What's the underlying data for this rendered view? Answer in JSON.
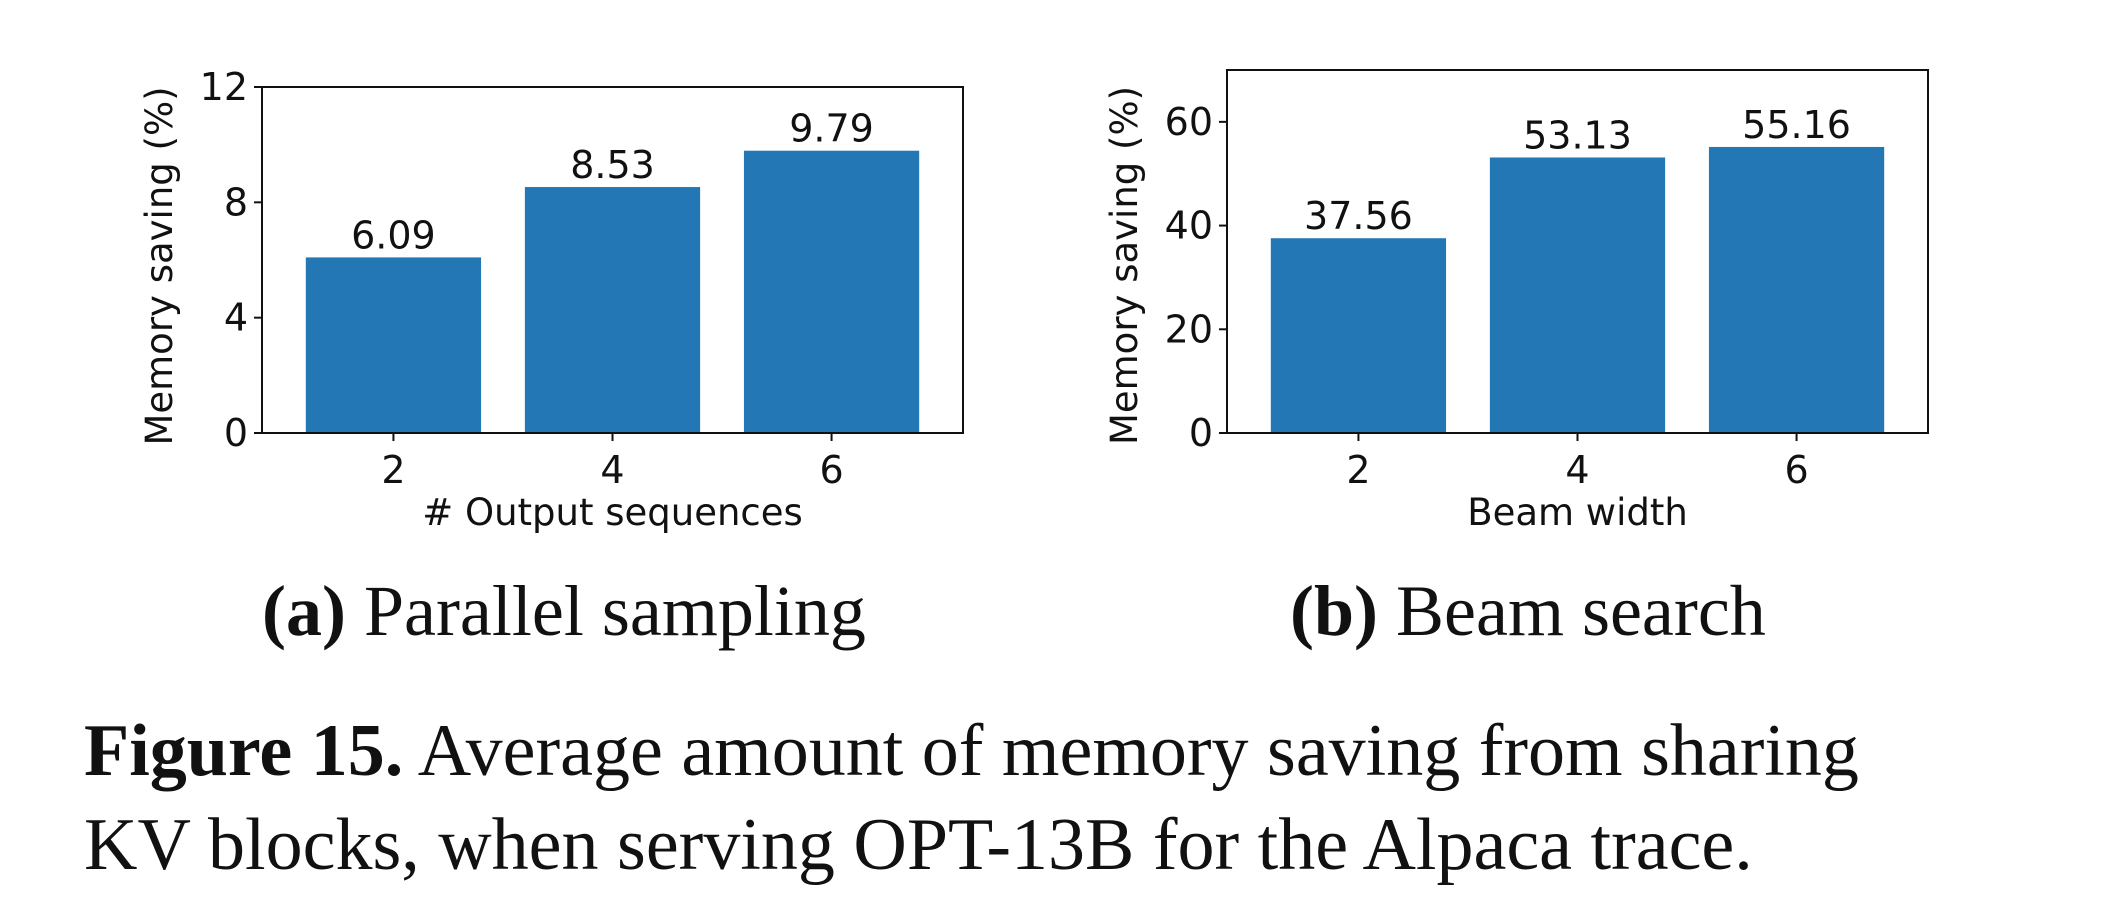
{
  "chart_data": [
    {
      "type": "bar",
      "panel_label": "(a)",
      "subtitle": "Parallel sampling",
      "categories": [
        "2",
        "4",
        "6"
      ],
      "values": [
        6.09,
        8.53,
        9.79
      ],
      "value_labels": [
        "6.09",
        "8.53",
        "9.79"
      ],
      "xlabel": "# Output sequences",
      "ylabel": "Memory saving (%)",
      "ylim": [
        0,
        12
      ],
      "yticks": [
        0,
        4,
        8,
        12
      ],
      "color": "#2277b4"
    },
    {
      "type": "bar",
      "panel_label": "(b)",
      "subtitle": "Beam search",
      "categories": [
        "2",
        "4",
        "6"
      ],
      "values": [
        37.56,
        53.13,
        55.16
      ],
      "value_labels": [
        "37.56",
        "53.13",
        "55.16"
      ],
      "xlabel": "Beam width",
      "ylabel": "Memory saving (%)",
      "ylim": [
        0,
        70
      ],
      "yticks": [
        0,
        20,
        40,
        60
      ],
      "color": "#2277b4"
    }
  ],
  "figure_caption": {
    "label": "Figure 15.",
    "line1": "Average amount of memory saving from sharing",
    "line2": "KV blocks, when serving OPT-13B for the Alpaca trace."
  }
}
